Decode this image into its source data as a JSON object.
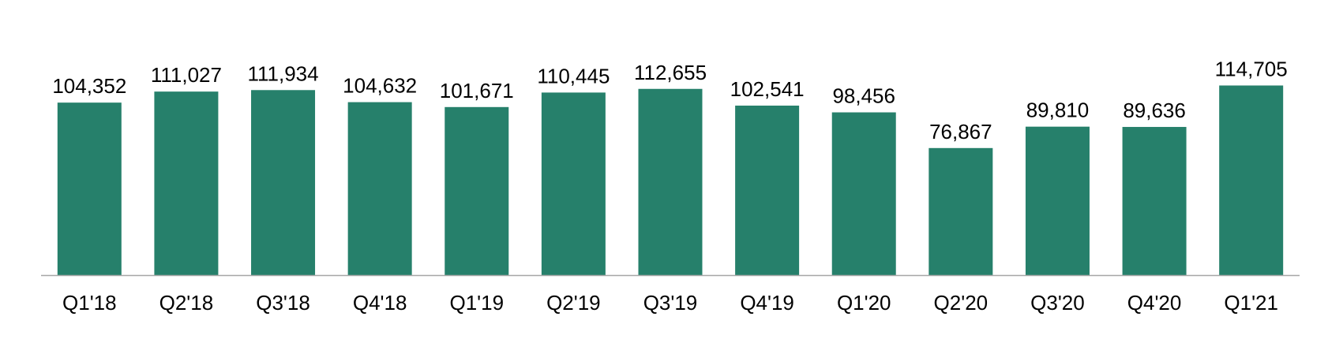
{
  "chart_data": {
    "type": "bar",
    "categories": [
      "Q1'18",
      "Q2'18",
      "Q3'18",
      "Q4'18",
      "Q1'19",
      "Q2'19",
      "Q3'19",
      "Q4'19",
      "Q1'20",
      "Q2'20",
      "Q3'20",
      "Q4'20",
      "Q1'21"
    ],
    "values": [
      104352,
      111027,
      111934,
      104632,
      101671,
      110445,
      112655,
      102541,
      98456,
      76867,
      89810,
      89636,
      114705
    ],
    "value_labels": [
      "104,352",
      "111,027",
      "111,934",
      "104,632",
      "101,671",
      "110,445",
      "112,655",
      "102,541",
      "98,456",
      "76,867",
      "89,810",
      "89,636",
      "114,705"
    ],
    "title": "",
    "xlabel": "",
    "ylabel": "",
    "ylim": [
      0,
      120000
    ],
    "grid": false,
    "legend": "none",
    "colors": {
      "bar": "#26806B",
      "axis": "#A6A6A6",
      "text": "#000000"
    }
  }
}
